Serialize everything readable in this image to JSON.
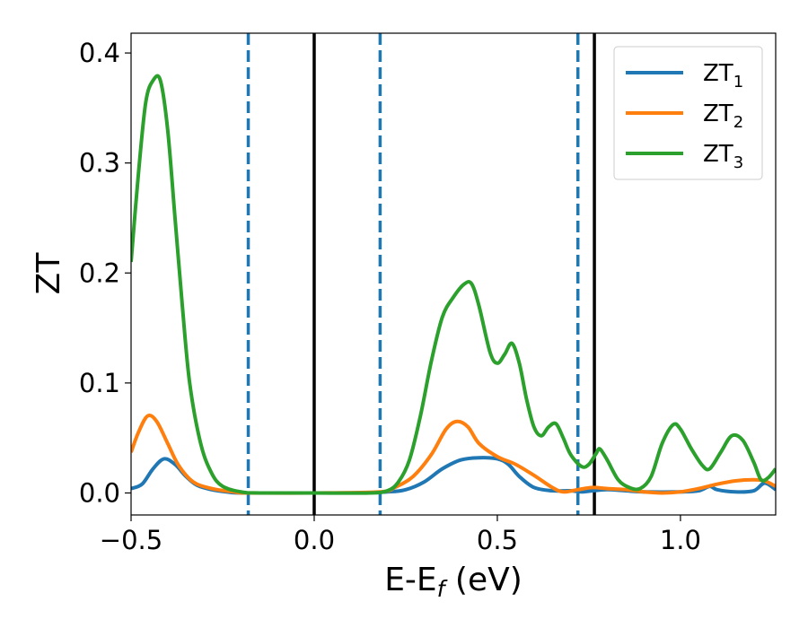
{
  "chart_data": {
    "type": "line",
    "xlabel_main": "E-E",
    "xlabel_sub": "f",
    "xlabel_unit": " (eV)",
    "ylabel": "ZT",
    "xlim": [
      -0.5,
      1.26
    ],
    "ylim": [
      -0.02,
      0.418
    ],
    "grid": false,
    "legend_position": "top-right",
    "x_ticks": [
      {
        "value": -0.5,
        "label": "−0.5"
      },
      {
        "value": 0.0,
        "label": "0.0"
      },
      {
        "value": 0.5,
        "label": "0.5"
      },
      {
        "value": 1.0,
        "label": "1.0"
      }
    ],
    "y_ticks": [
      {
        "value": 0.0,
        "label": "0.0"
      },
      {
        "value": 0.1,
        "label": "0.1"
      },
      {
        "value": 0.2,
        "label": "0.2"
      },
      {
        "value": 0.3,
        "label": "0.3"
      },
      {
        "value": 0.4,
        "label": "0.4"
      }
    ],
    "vertical_lines": [
      {
        "x": -0.18,
        "style": "dashed",
        "color": "#1f77b4"
      },
      {
        "x": 0.0,
        "style": "solid",
        "color": "#000000"
      },
      {
        "x": 0.18,
        "style": "dashed",
        "color": "#1f77b4"
      },
      {
        "x": 0.72,
        "style": "dashed",
        "color": "#1f77b4"
      },
      {
        "x": 0.765,
        "style": "solid",
        "color": "#000000"
      }
    ],
    "series": [
      {
        "name_main": "ZT",
        "name_sub": "1",
        "color": "#1f77b4",
        "points": [
          [
            -0.5,
            0.004
          ],
          [
            -0.47,
            0.008
          ],
          [
            -0.44,
            0.022
          ],
          [
            -0.41,
            0.031
          ],
          [
            -0.38,
            0.026
          ],
          [
            -0.35,
            0.015
          ],
          [
            -0.32,
            0.007
          ],
          [
            -0.28,
            0.003
          ],
          [
            -0.24,
            0.001
          ],
          [
            -0.2,
            0.0
          ],
          [
            -0.1,
            0.0
          ],
          [
            0.0,
            0.0
          ],
          [
            0.1,
            0.0
          ],
          [
            0.2,
            0.001
          ],
          [
            0.25,
            0.003
          ],
          [
            0.3,
            0.01
          ],
          [
            0.35,
            0.022
          ],
          [
            0.4,
            0.03
          ],
          [
            0.45,
            0.032
          ],
          [
            0.5,
            0.031
          ],
          [
            0.53,
            0.026
          ],
          [
            0.56,
            0.015
          ],
          [
            0.6,
            0.005
          ],
          [
            0.65,
            0.002
          ],
          [
            0.7,
            0.002
          ],
          [
            0.73,
            0.001
          ],
          [
            0.76,
            0.002
          ],
          [
            0.8,
            0.003
          ],
          [
            0.85,
            0.002
          ],
          [
            0.9,
            0.001
          ],
          [
            1.0,
            0.001
          ],
          [
            1.05,
            0.002
          ],
          [
            1.08,
            0.006
          ],
          [
            1.1,
            0.003
          ],
          [
            1.15,
            0.001
          ],
          [
            1.2,
            0.002
          ],
          [
            1.23,
            0.009
          ],
          [
            1.26,
            0.003
          ]
        ]
      },
      {
        "name_main": "ZT",
        "name_sub": "2",
        "color": "#ff7f0e",
        "points": [
          [
            -0.5,
            0.037
          ],
          [
            -0.48,
            0.055
          ],
          [
            -0.455,
            0.07
          ],
          [
            -0.43,
            0.065
          ],
          [
            -0.4,
            0.045
          ],
          [
            -0.37,
            0.025
          ],
          [
            -0.33,
            0.01
          ],
          [
            -0.28,
            0.004
          ],
          [
            -0.22,
            0.001
          ],
          [
            -0.18,
            0.0
          ],
          [
            0.0,
            0.0
          ],
          [
            0.18,
            0.001
          ],
          [
            0.22,
            0.005
          ],
          [
            0.27,
            0.015
          ],
          [
            0.32,
            0.035
          ],
          [
            0.36,
            0.058
          ],
          [
            0.39,
            0.065
          ],
          [
            0.42,
            0.06
          ],
          [
            0.45,
            0.045
          ],
          [
            0.5,
            0.033
          ],
          [
            0.55,
            0.026
          ],
          [
            0.6,
            0.016
          ],
          [
            0.65,
            0.005
          ],
          [
            0.68,
            0.001
          ],
          [
            0.72,
            0.003
          ],
          [
            0.76,
            0.005
          ],
          [
            0.8,
            0.004
          ],
          [
            0.85,
            0.003
          ],
          [
            0.9,
            0.001
          ],
          [
            0.95,
            0.0
          ],
          [
            1.0,
            0.001
          ],
          [
            1.05,
            0.004
          ],
          [
            1.1,
            0.008
          ],
          [
            1.15,
            0.011
          ],
          [
            1.2,
            0.012
          ],
          [
            1.23,
            0.011
          ],
          [
            1.26,
            0.006
          ]
        ]
      },
      {
        "name_main": "ZT",
        "name_sub": "3",
        "color": "#2ca02c",
        "points": [
          [
            -0.5,
            0.21
          ],
          [
            -0.48,
            0.29
          ],
          [
            -0.46,
            0.355
          ],
          [
            -0.44,
            0.375
          ],
          [
            -0.42,
            0.375
          ],
          [
            -0.4,
            0.33
          ],
          [
            -0.38,
            0.25
          ],
          [
            -0.36,
            0.17
          ],
          [
            -0.34,
            0.1
          ],
          [
            -0.31,
            0.045
          ],
          [
            -0.28,
            0.018
          ],
          [
            -0.25,
            0.006
          ],
          [
            -0.2,
            0.001
          ],
          [
            -0.15,
            0.0
          ],
          [
            0.0,
            0.0
          ],
          [
            0.15,
            0.0
          ],
          [
            0.2,
            0.002
          ],
          [
            0.23,
            0.01
          ],
          [
            0.26,
            0.03
          ],
          [
            0.29,
            0.07
          ],
          [
            0.32,
            0.12
          ],
          [
            0.35,
            0.16
          ],
          [
            0.38,
            0.178
          ],
          [
            0.41,
            0.19
          ],
          [
            0.43,
            0.19
          ],
          [
            0.45,
            0.17
          ],
          [
            0.48,
            0.128
          ],
          [
            0.5,
            0.118
          ],
          [
            0.52,
            0.126
          ],
          [
            0.54,
            0.136
          ],
          [
            0.56,
            0.118
          ],
          [
            0.58,
            0.085
          ],
          [
            0.6,
            0.06
          ],
          [
            0.62,
            0.052
          ],
          [
            0.64,
            0.06
          ],
          [
            0.66,
            0.063
          ],
          [
            0.68,
            0.05
          ],
          [
            0.7,
            0.035
          ],
          [
            0.73,
            0.024
          ],
          [
            0.75,
            0.026
          ],
          [
            0.77,
            0.036
          ],
          [
            0.78,
            0.04
          ],
          [
            0.8,
            0.03
          ],
          [
            0.83,
            0.012
          ],
          [
            0.86,
            0.005
          ],
          [
            0.89,
            0.004
          ],
          [
            0.92,
            0.015
          ],
          [
            0.95,
            0.045
          ],
          [
            0.98,
            0.062
          ],
          [
            1.0,
            0.058
          ],
          [
            1.03,
            0.04
          ],
          [
            1.06,
            0.025
          ],
          [
            1.08,
            0.022
          ],
          [
            1.11,
            0.037
          ],
          [
            1.14,
            0.052
          ],
          [
            1.17,
            0.048
          ],
          [
            1.2,
            0.028
          ],
          [
            1.22,
            0.012
          ],
          [
            1.24,
            0.014
          ],
          [
            1.26,
            0.022
          ]
        ]
      }
    ]
  }
}
